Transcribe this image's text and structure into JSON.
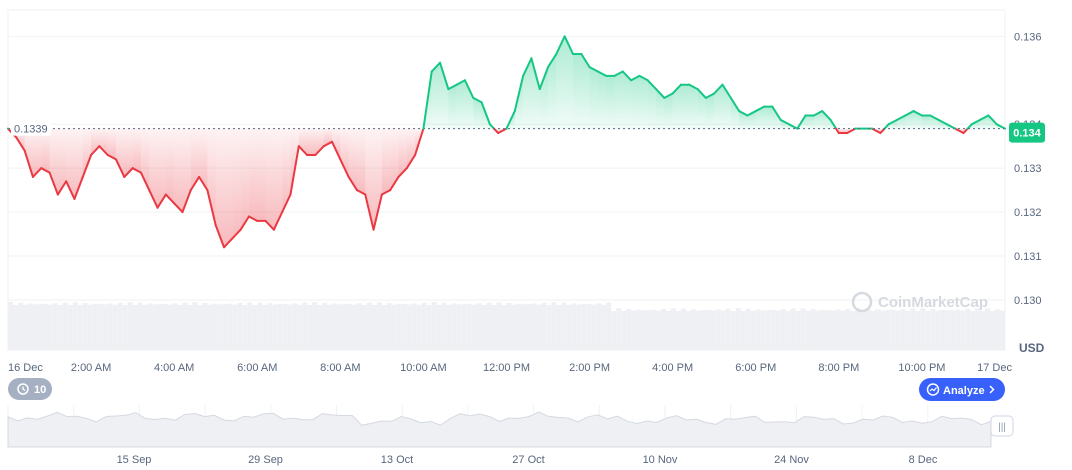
{
  "chart_data": {
    "type": "line",
    "title": "",
    "unit_label": "USD",
    "watermark": "CoinMarketCap",
    "ylim": [
      0.13,
      0.1366
    ],
    "y_ticks": [
      "0.130",
      "0.131",
      "0.132",
      "0.133",
      "0.134",
      "0.136"
    ],
    "x_ticks": [
      "16 Dec",
      "2:00 AM",
      "4:00 AM",
      "6:00 AM",
      "8:00 AM",
      "10:00 AM",
      "12:00 PM",
      "2:00 PM",
      "4:00 PM",
      "6:00 PM",
      "8:00 PM",
      "10:00 PM",
      "17 Dec"
    ],
    "reference_price": 0.1339,
    "reference_label": "0.1339",
    "current_price_label": "0.134",
    "colors": {
      "up": "#16c784",
      "down": "#ea3943",
      "badge": "#16c784",
      "analyze": "#3861fb"
    },
    "series": [
      {
        "t": [
          0,
          0.2,
          0.4,
          0.6,
          0.8,
          1.0,
          1.2,
          1.4,
          1.6,
          1.8,
          2.0,
          2.2,
          2.4,
          2.6,
          2.8,
          3.0,
          3.2,
          3.4,
          3.6,
          3.8,
          4.0,
          4.2,
          4.4,
          4.6,
          4.8,
          5.0,
          5.2,
          5.4,
          5.6,
          5.8,
          6.0,
          6.2,
          6.4,
          6.6,
          6.8,
          7.0,
          7.2,
          7.4,
          7.6,
          7.8,
          8.0,
          8.2,
          8.4,
          8.6,
          8.8,
          9.0,
          9.2,
          9.4,
          9.6,
          9.8,
          10.0,
          10.2,
          10.4,
          10.6,
          10.8,
          11.0,
          11.2,
          11.4,
          11.6,
          11.8,
          12.0,
          12.2,
          12.4,
          12.6,
          12.8,
          13.0,
          13.2,
          13.4,
          13.6,
          13.8,
          14.0,
          14.2,
          14.4,
          14.6,
          14.8,
          15.0,
          15.2,
          15.4,
          15.6,
          15.8,
          16.0,
          16.2,
          16.4,
          16.6,
          16.8,
          17.0,
          17.2,
          17.4,
          17.6,
          17.8,
          18.0,
          18.2,
          18.4,
          18.6,
          18.8,
          19.0,
          19.2,
          19.4,
          19.6,
          19.8,
          20.0,
          20.2,
          20.4,
          20.6,
          20.8,
          21.0,
          21.2,
          21.4,
          21.6,
          21.8,
          22.0,
          22.2,
          22.4,
          22.6,
          22.8,
          23.0,
          23.2,
          23.4,
          23.6,
          23.8,
          24.0
        ],
        "values": [
          0.1339,
          0.1337,
          0.1334,
          0.1328,
          0.133,
          0.1329,
          0.1324,
          0.1327,
          0.1323,
          0.1328,
          0.1333,
          0.1335,
          0.1333,
          0.1332,
          0.1328,
          0.133,
          0.1329,
          0.1325,
          0.1321,
          0.1324,
          0.1322,
          0.132,
          0.1325,
          0.1328,
          0.1325,
          0.1317,
          0.1312,
          0.1314,
          0.1316,
          0.1319,
          0.1318,
          0.1318,
          0.1316,
          0.132,
          0.1324,
          0.1335,
          0.1333,
          0.1333,
          0.1335,
          0.1336,
          0.1332,
          0.1328,
          0.1325,
          0.1324,
          0.1316,
          0.1324,
          0.1325,
          0.1328,
          0.133,
          0.1333,
          0.1339,
          0.1352,
          0.1354,
          0.1348,
          0.1349,
          0.135,
          0.1346,
          0.1345,
          0.134,
          0.1338,
          0.1339,
          0.1343,
          0.1351,
          0.1355,
          0.1348,
          0.1353,
          0.1356,
          0.136,
          0.1356,
          0.1356,
          0.1353,
          0.1352,
          0.1351,
          0.1351,
          0.1352,
          0.135,
          0.1351,
          0.135,
          0.1348,
          0.1346,
          0.1347,
          0.1349,
          0.1349,
          0.1348,
          0.1346,
          0.1347,
          0.1349,
          0.1346,
          0.1343,
          0.1342,
          0.1343,
          0.1344,
          0.1344,
          0.1341,
          0.134,
          0.1339,
          0.1342,
          0.1342,
          0.1343,
          0.1341,
          0.1338,
          0.1338,
          0.1339,
          0.1339,
          0.1339,
          0.1338,
          0.134,
          0.1341,
          0.1342,
          0.1343,
          0.1342,
          0.1342,
          0.1341,
          0.134,
          0.1339,
          0.1338,
          0.134,
          0.1341,
          0.1342,
          0.134,
          0.1339
        ]
      }
    ],
    "navigator": {
      "x_ticks": [
        "15 Sep",
        "29 Sep",
        "13 Oct",
        "27 Oct",
        "10 Nov",
        "24 Nov",
        "8 Dec"
      ],
      "history_button_label": "10",
      "analyze_button_label": "Analyze",
      "handle_glyph": "|||"
    }
  }
}
